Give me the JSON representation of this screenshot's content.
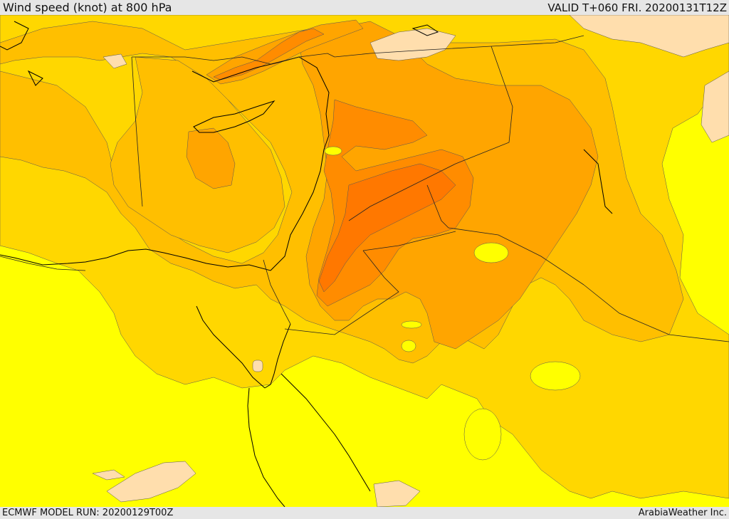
{
  "header": {
    "title": "Wind speed (knot) at 800 hPa",
    "valid": "VALID T+060 FRI. 20200131T12Z"
  },
  "footer": {
    "model_run": "ECMWF MODEL RUN: 20200129T00Z",
    "credit": "ArabiaWeather Inc."
  },
  "colors": {
    "lowest_band": "#ffff00",
    "band_2": "#ffd700",
    "band_3": "#ffbf00",
    "band_4": "#ffa500",
    "band_5": "#ff8c00",
    "band_6": "#ff7800",
    "calm": "#ffdead",
    "coastline": "#000000",
    "border": "#333333"
  }
}
